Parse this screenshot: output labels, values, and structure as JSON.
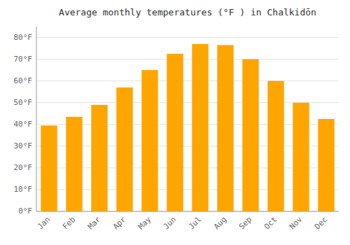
{
  "chart_data": {
    "type": "bar",
    "title": "Average monthly temperatures (°F ) in Chalkidōn",
    "categories": [
      "Jan",
      "Feb",
      "Mar",
      "Apr",
      "May",
      "Jun",
      "Jul",
      "Aug",
      "Sep",
      "Oct",
      "Nov",
      "Dec"
    ],
    "values": [
      39.5,
      43.5,
      49,
      57,
      65,
      72.5,
      77,
      76.5,
      70,
      60,
      50,
      42.5
    ],
    "color": "#FFA500",
    "ylim": [
      0,
      85
    ],
    "yticks": [
      {
        "value": 0,
        "label": "0°F"
      },
      {
        "value": 10,
        "label": "10°F"
      },
      {
        "value": 20,
        "label": "20°F"
      },
      {
        "value": 30,
        "label": "30°F"
      },
      {
        "value": 40,
        "label": "40°F"
      },
      {
        "value": 50,
        "label": "50°F"
      },
      {
        "value": 60,
        "label": "60°F"
      },
      {
        "value": 70,
        "label": "70°F"
      },
      {
        "value": 80,
        "label": "80°F"
      }
    ],
    "grid": true
  }
}
